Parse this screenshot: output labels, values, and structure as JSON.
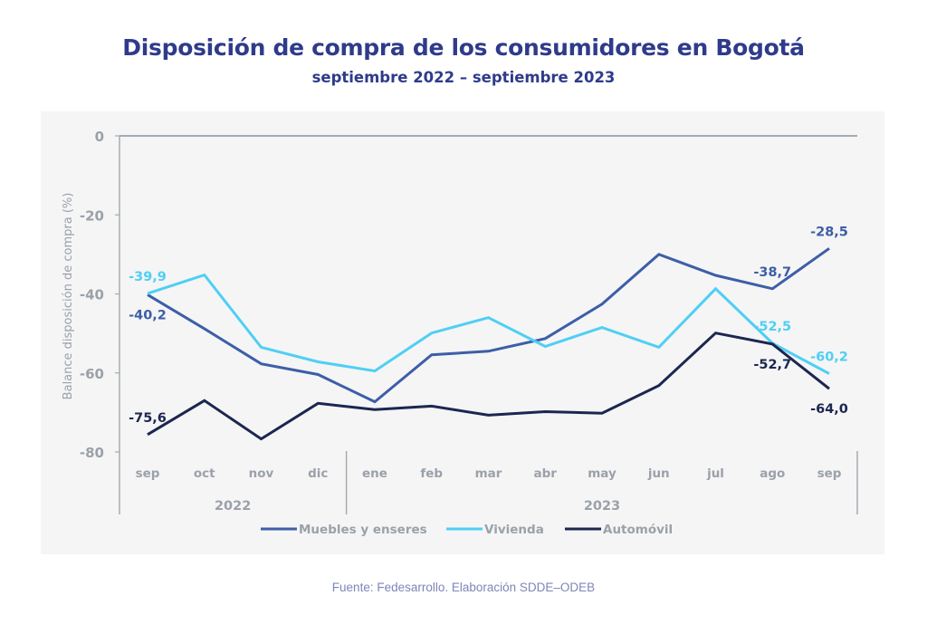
{
  "header": {
    "title": "Disposición de compra de los consumidores en Bogotá",
    "subtitle": "septiembre 2022 – septiembre 2023"
  },
  "footer": {
    "source": "Fuente: Fedesarrollo. Elaboración SDDE–ODEB"
  },
  "chart_data": {
    "type": "line",
    "title": "Disposición de compra de los consumidores en Bogotá",
    "subtitle": "septiembre 2022 – septiembre 2023",
    "xlabel": "",
    "ylabel": "Balance disposición de compra (%)",
    "ylim": [
      -80,
      0
    ],
    "yticks": [
      0,
      -20,
      -40,
      -60,
      -80
    ],
    "ytick_labels": [
      "0",
      "-20",
      "-40",
      "-60",
      "-80"
    ],
    "grid": false,
    "categories": [
      "sep",
      "oct",
      "nov",
      "dic",
      "ene",
      "feb",
      "mar",
      "abr",
      "may",
      "jun",
      "jul",
      "ago",
      "sep"
    ],
    "year_groups": [
      {
        "label": "2022",
        "start": 0,
        "end": 3
      },
      {
        "label": "2023",
        "start": 4,
        "end": 12
      }
    ],
    "legend_position": "bottom",
    "series": [
      {
        "name": "Muebles y enseres",
        "color": "#3d5ea8",
        "values": [
          -40.2,
          -48.8,
          -57.7,
          -60.4,
          -67.3,
          -55.4,
          -54.5,
          -51.3,
          -42.6,
          -30.0,
          -35.3,
          -38.7,
          -28.5
        ],
        "labels": [
          {
            "index": 0,
            "text": "-40,2",
            "pos": "below"
          },
          {
            "index": 11,
            "text": "-38,7",
            "pos": "above"
          },
          {
            "index": 12,
            "text": "-28,5",
            "pos": "above"
          }
        ]
      },
      {
        "name": "Vivienda",
        "color": "#4fcff4",
        "values": [
          -39.9,
          -35.2,
          -53.5,
          -57.2,
          -59.5,
          -49.9,
          -46.0,
          -53.3,
          -48.5,
          -53.5,
          -38.7,
          -52.5,
          -60.2
        ],
        "labels": [
          {
            "index": 0,
            "text": "-39,9",
            "pos": "above"
          },
          {
            "index": 11,
            "text": "-52,5",
            "pos": "above"
          },
          {
            "index": 12,
            "text": "-60,2",
            "pos": "above"
          }
        ]
      },
      {
        "name": "Automóvil",
        "color": "#1c2651",
        "values": [
          -75.6,
          -67.0,
          -76.7,
          -67.7,
          -69.3,
          -68.4,
          -70.7,
          -69.8,
          -70.2,
          -63.2,
          -49.9,
          -52.7,
          -64.0
        ],
        "labels": [
          {
            "index": 0,
            "text": "-75,6",
            "pos": "above"
          },
          {
            "index": 11,
            "text": "-52,7",
            "pos": "below"
          },
          {
            "index": 12,
            "text": "-64,0",
            "pos": "below"
          }
        ]
      }
    ]
  }
}
